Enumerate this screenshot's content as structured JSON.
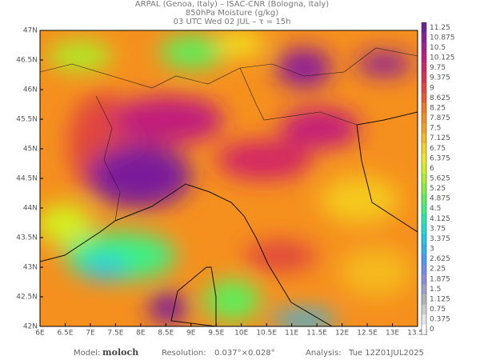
{
  "header": {
    "line1": "ARPAL (Genoa, Italy)  –  ISAC-CNR (Bologna, Italy)",
    "line2": "850hPa Moisture (g/kg)",
    "line3": "03 UTC Wed 02 JUL  –  τ = 15h"
  },
  "map": {
    "lon_range": [
      6,
      13.5
    ],
    "lat_range": [
      42,
      47
    ],
    "lon_ticks": [
      {
        "value": 6,
        "label": "6E"
      },
      {
        "value": 6.5,
        "label": "6.5E"
      },
      {
        "value": 7,
        "label": "7E"
      },
      {
        "value": 7.5,
        "label": "7.5E"
      },
      {
        "value": 8,
        "label": "8E"
      },
      {
        "value": 8.5,
        "label": "8.5E"
      },
      {
        "value": 9,
        "label": "9E"
      },
      {
        "value": 9.5,
        "label": "9.5E"
      },
      {
        "value": 10,
        "label": "10E"
      },
      {
        "value": 10.5,
        "label": "10.5E"
      },
      {
        "value": 11,
        "label": "11E"
      },
      {
        "value": 11.5,
        "label": "11.5E"
      },
      {
        "value": 12,
        "label": "12E"
      },
      {
        "value": 12.5,
        "label": "12.5E"
      },
      {
        "value": 13,
        "label": "13E"
      },
      {
        "value": 13.5,
        "label": "13.5E"
      }
    ],
    "lat_ticks": [
      {
        "value": 42,
        "label": "42N"
      },
      {
        "value": 42.5,
        "label": "42.5N"
      },
      {
        "value": 43,
        "label": "43N"
      },
      {
        "value": 43.5,
        "label": "43.5N"
      },
      {
        "value": 44,
        "label": "44N"
      },
      {
        "value": 44.5,
        "label": "44.5N"
      },
      {
        "value": 45,
        "label": "45N"
      },
      {
        "value": 45.5,
        "label": "45.5N"
      },
      {
        "value": 46,
        "label": "46N"
      },
      {
        "value": 46.5,
        "label": "46.5N"
      },
      {
        "value": 47,
        "label": "47N"
      }
    ]
  },
  "colorbar": {
    "levels": [
      0,
      0.375,
      0.75,
      1.125,
      1.5,
      1.875,
      2.25,
      2.625,
      3,
      3.375,
      3.75,
      4.125,
      4.5,
      4.875,
      5.25,
      5.625,
      6,
      6.375,
      6.75,
      7.125,
      7.5,
      7.875,
      8.25,
      8.625,
      9,
      9.375,
      9.75,
      10.125,
      10.5,
      10.875,
      11.25
    ],
    "colors": [
      "#ffffff",
      "#e6e6e6",
      "#cccccc",
      "#b4b4b4",
      "#a0a0c8",
      "#8c8cdc",
      "#6e8cf0",
      "#4a9bf5",
      "#2db4f0",
      "#20c8e6",
      "#1edcd2",
      "#28e6aa",
      "#3cf082",
      "#5af05a",
      "#82f03c",
      "#aaf028",
      "#d2f01e",
      "#f0e61e",
      "#f5d21e",
      "#f5b91e",
      "#f5a01e",
      "#f58c1e",
      "#f0781e",
      "#eb5a28",
      "#e6463c",
      "#dc3250",
      "#d22864",
      "#c31e78",
      "#aa1e8c",
      "#8c1e96",
      "#6e1e96"
    ]
  },
  "footer": [
    {
      "label": "Model:",
      "value": "moloch"
    },
    {
      "label": "Resolution:",
      "value": "0.037°×0.028°"
    },
    {
      "label": "Analysis:",
      "value": "Tue 12Z01JUL2025"
    }
  ]
}
